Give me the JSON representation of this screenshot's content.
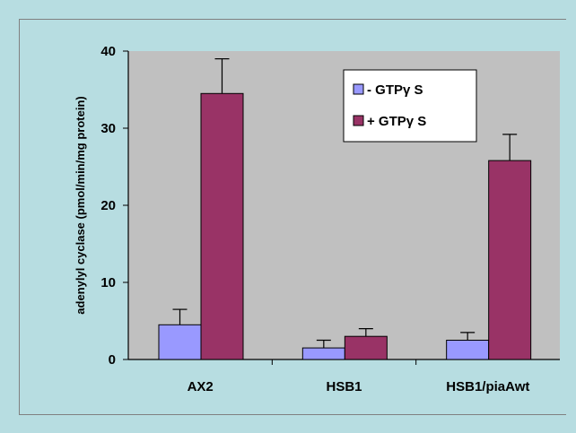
{
  "chart_data": {
    "type": "bar",
    "categories": [
      "AX2",
      "HSB1",
      "HSB1/piaAwt"
    ],
    "series": [
      {
        "name": "- GTPγ S",
        "values": [
          4.5,
          1.5,
          2.5
        ],
        "errors": [
          2.0,
          1.0,
          1.0
        ],
        "color": "#9999ff"
      },
      {
        "name": "+ GTPγ S",
        "values": [
          34.5,
          3.0,
          25.8
        ],
        "errors": [
          4.5,
          1.0,
          3.4
        ],
        "color": "#993366"
      }
    ],
    "ylabel": "adenylyl cyclase (pmol/min/mg protein)",
    "xlabel": "",
    "ylim": [
      0,
      40
    ],
    "yticks": [
      0,
      10,
      20,
      30,
      40
    ],
    "grid": false,
    "legend": "top-right",
    "plot_background": "#c0c0c0",
    "error_bars": true
  }
}
